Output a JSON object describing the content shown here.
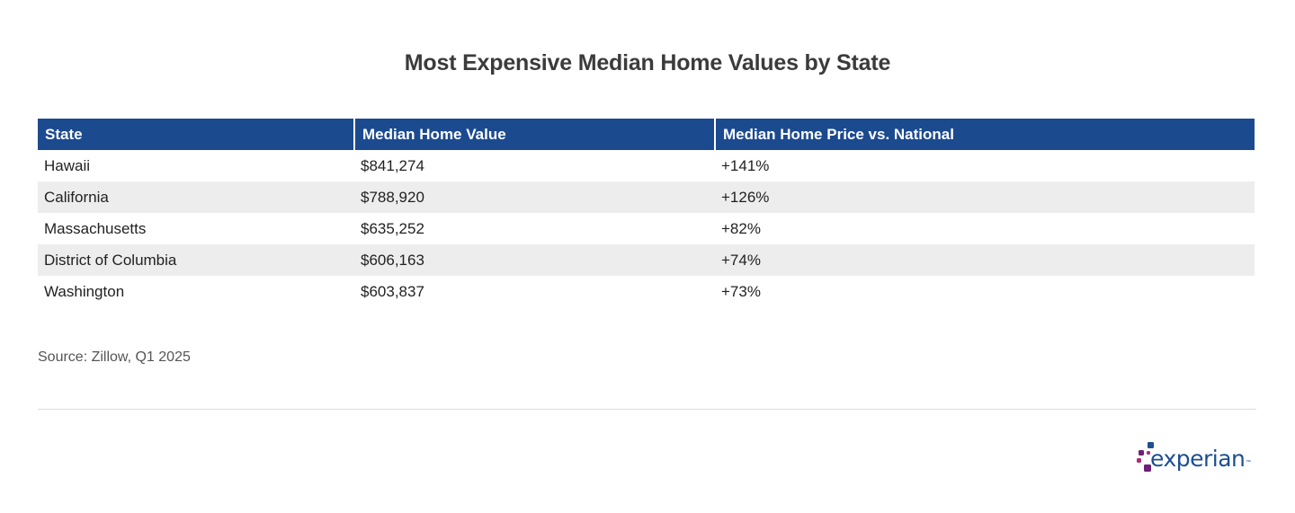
{
  "title": "Most Expensive Median Home Values by State",
  "chart_data": {
    "type": "table",
    "title": "Most Expensive Median Home Values by State",
    "columns": [
      "State",
      "Median Home Value",
      "Median Home Price vs. National"
    ],
    "rows": [
      [
        "Hawaii",
        "$841,274",
        "+141%"
      ],
      [
        "California",
        "$788,920",
        "+126%"
      ],
      [
        "Massachusetts",
        "$635,252",
        "+82%"
      ],
      [
        "District of Columbia",
        "$606,163",
        "+74%"
      ],
      [
        "Washington",
        "$603,837",
        "+73%"
      ]
    ]
  },
  "source": "Source: Zillow, Q1 2025",
  "logo": {
    "text": "experian",
    "icon": "experian-logo-icon"
  },
  "colors": {
    "header_background": "#1c4a8f",
    "stripe_background": "#ededed",
    "logo_blue": "#1d4f91",
    "logo_magenta": "#b1287b",
    "logo_purple": "#6d2077"
  }
}
